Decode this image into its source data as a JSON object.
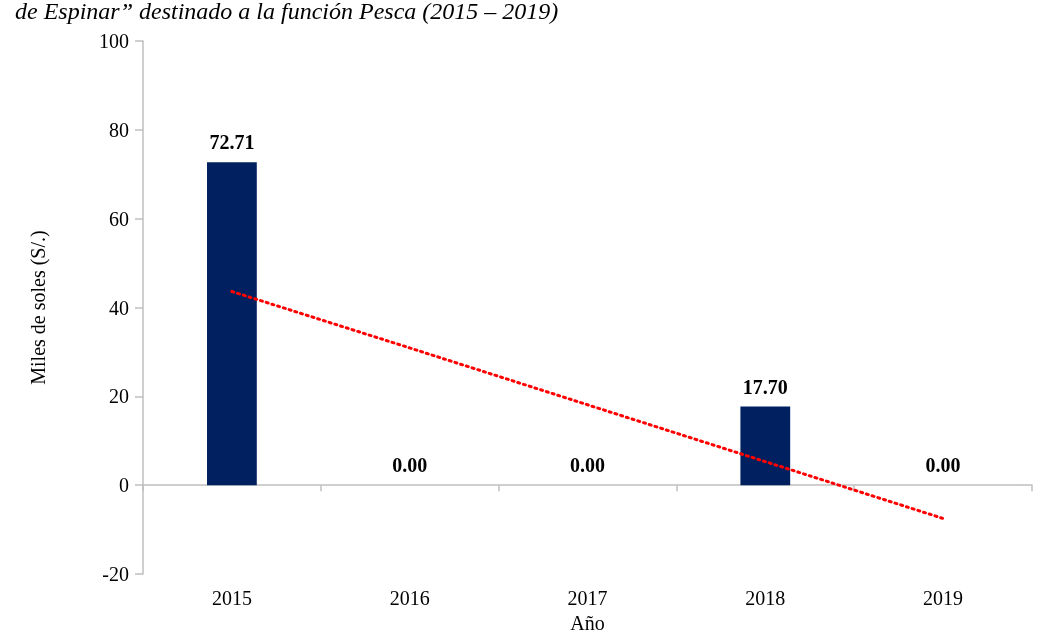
{
  "chart_data": {
    "type": "bar",
    "title": "de Espinar” destinado a la función Pesca (2015 – 2019)",
    "xlabel": "Año",
    "ylabel": "Miles de soles (S/.)",
    "categories": [
      "2015",
      "2016",
      "2017",
      "2018",
      "2019"
    ],
    "series": [
      {
        "color": "#002060",
        "values": [
          72.71,
          0,
          0,
          17.7,
          0
        ],
        "value_labels": [
          "72.71",
          "0.00",
          "0.00",
          "17.70",
          "0.00"
        ]
      },
      {
        "type": "line",
        "color": "#ff0000",
        "line_style": "dotted",
        "marker": "none",
        "values": [
          43.6,
          30.9,
          18.1,
          5.3,
          -7.5
        ]
      }
    ],
    "ylim": [
      -20,
      100
    ],
    "yticks": [
      -20,
      0,
      20,
      40,
      60,
      80,
      100
    ]
  }
}
